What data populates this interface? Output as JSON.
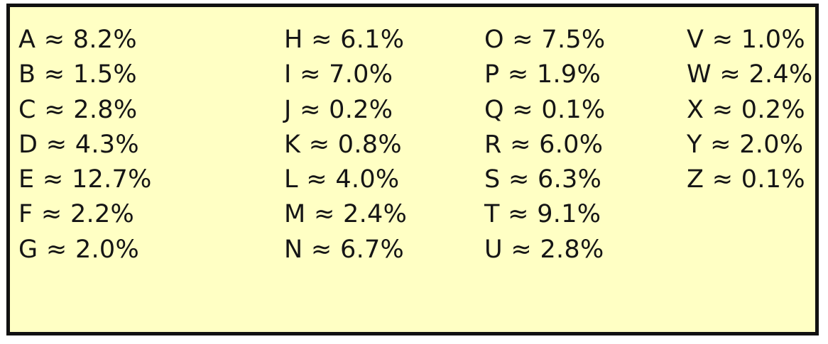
{
  "letter_frequencies": {
    "columns": [
      [
        {
          "letter": "A",
          "symbol": "≈",
          "value": "8.2%"
        },
        {
          "letter": "B",
          "symbol": "≈",
          "value": "1.5%"
        },
        {
          "letter": "C",
          "symbol": "≈",
          "value": "2.8%"
        },
        {
          "letter": "D",
          "symbol": "≈",
          "value": "4.3%"
        },
        {
          "letter": "E",
          "symbol": "≈",
          "value": "12.7%"
        },
        {
          "letter": "F",
          "symbol": "≈",
          "value": "2.2%"
        },
        {
          "letter": "G",
          "symbol": "≈",
          "value": "2.0%"
        }
      ],
      [
        {
          "letter": "H",
          "symbol": "≈",
          "value": "6.1%"
        },
        {
          "letter": "I",
          "symbol": "≈",
          "value": "7.0%"
        },
        {
          "letter": "J",
          "symbol": "≈",
          "value": "0.2%"
        },
        {
          "letter": "K",
          "symbol": "≈",
          "value": "0.8%"
        },
        {
          "letter": "L",
          "symbol": "≈",
          "value": "4.0%"
        },
        {
          "letter": "M",
          "symbol": "≈",
          "value": "2.4%"
        },
        {
          "letter": "N",
          "symbol": "≈",
          "value": "6.7%"
        }
      ],
      [
        {
          "letter": "O",
          "symbol": "≈",
          "value": "7.5%"
        },
        {
          "letter": "P",
          "symbol": "≈",
          "value": "1.9%"
        },
        {
          "letter": "Q",
          "symbol": "≈",
          "value": "0.1%"
        },
        {
          "letter": "R",
          "symbol": "≈",
          "value": "6.0%"
        },
        {
          "letter": "S",
          "symbol": "≈",
          "value": "6.3%"
        },
        {
          "letter": "T",
          "symbol": "≈",
          "value": "9.1%"
        },
        {
          "letter": "U",
          "symbol": "≈",
          "value": "2.8%"
        }
      ],
      [
        {
          "letter": "V",
          "symbol": "≈",
          "value": "1.0%"
        },
        {
          "letter": "W",
          "symbol": "≈",
          "value": "2.4%"
        },
        {
          "letter": "X",
          "symbol": "≈",
          "value": "0.2%"
        },
        {
          "letter": "Y",
          "symbol": "≈",
          "value": "2.0%"
        },
        {
          "letter": "Z",
          "symbol": "≈",
          "value": "0.1%"
        }
      ]
    ]
  },
  "colors": {
    "panel_background": "#ffffc4",
    "border": "#111111",
    "text": "#151515"
  }
}
